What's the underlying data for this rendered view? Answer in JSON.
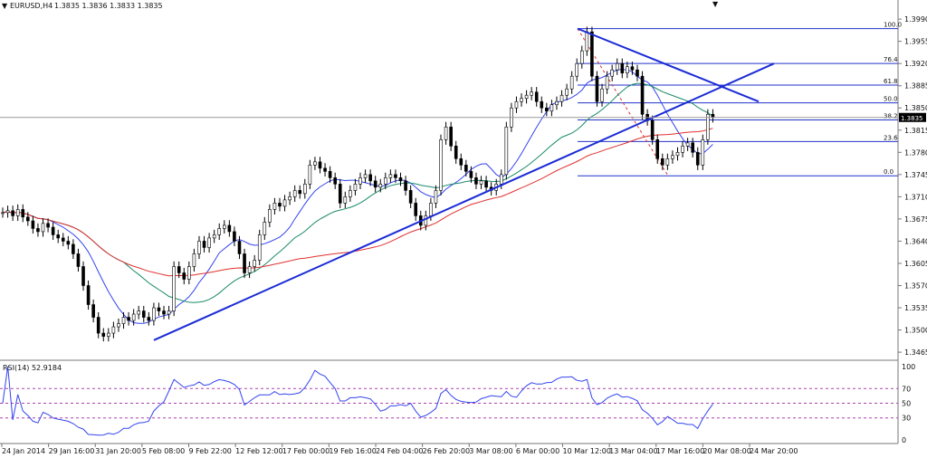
{
  "window": {
    "symbol_label": "EURUSD,H4",
    "ohlc_label": "1.3835 1.3836 1.3833 1.3835",
    "current_price_label": "1.3835"
  },
  "rsi_panel": {
    "label": "RSI(14) 52.9184",
    "levels": [
      70,
      50,
      30
    ],
    "ticks": [
      "100",
      "70",
      "50",
      "30",
      "0"
    ]
  },
  "chart_data": {
    "type": "candlestick",
    "instrument": "EURUSD",
    "timeframe": "H4",
    "y_ticks": [
      1.399,
      1.3955,
      1.392,
      1.3885,
      1.385,
      1.3815,
      1.378,
      1.3745,
      1.371,
      1.3675,
      1.364,
      1.3605,
      1.357,
      1.3535,
      1.35,
      1.3465
    ],
    "y_tick_labels": [
      "1.3990",
      "1.3955",
      "1.3920",
      "1.3885",
      "1.3850",
      "1.3815",
      "1.3780",
      "1.3745",
      "1.3710",
      "1.3675",
      "1.3640",
      "1.3605",
      "1.3570",
      "1.3535",
      "1.3500",
      "1.3465"
    ],
    "ylim": [
      1.3458,
      1.4003
    ],
    "x_tick_labels": [
      "24 Jan 2014",
      "29 Jan 16:00",
      "31 Jan 20:00",
      "5 Feb 08:00",
      "9 Feb 22:00",
      "12 Feb 12:00",
      "17 Feb 00:00",
      "19 Feb 16:00",
      "24 Feb 04:00",
      "26 Feb 20:00",
      "3 Mar 08:00",
      "6 Mar 00:00",
      "10 Mar 12:00",
      "13 Mar 04:00",
      "17 Mar 16:00",
      "20 Mar 08:00",
      "24 Mar 20:00"
    ],
    "fibonacci": {
      "levels": [
        {
          "label": "100.0",
          "price": 1.3975
        },
        {
          "label": "76.4",
          "price": 1.392
        },
        {
          "label": "61.8",
          "price": 1.3886
        },
        {
          "label": "50.0",
          "price": 1.3858
        },
        {
          "label": "38.2",
          "price": 1.3831
        },
        {
          "label": "23.6",
          "price": 1.3797
        },
        {
          "label": "0.0",
          "price": 1.3743
        }
      ]
    },
    "candles_close": [
      1.3685,
      1.3688,
      1.368,
      1.369,
      1.3678,
      1.3672,
      1.366,
      1.3655,
      1.3668,
      1.3662,
      1.365,
      1.3645,
      1.364,
      1.3635,
      1.362,
      1.36,
      1.357,
      1.354,
      1.352,
      1.3495,
      1.349,
      1.3495,
      1.3505,
      1.351,
      1.352,
      1.3515,
      1.3525,
      1.353,
      1.352,
      1.3515,
      1.3535,
      1.353,
      1.3525,
      1.353,
      1.36,
      1.359,
      1.358,
      1.36,
      1.362,
      1.364,
      1.363,
      1.3645,
      1.365,
      1.366,
      1.3665,
      1.3655,
      1.364,
      1.362,
      1.359,
      1.36,
      1.361,
      1.365,
      1.367,
      1.369,
      1.37,
      1.3695,
      1.3705,
      1.371,
      1.372,
      1.3715,
      1.373,
      1.376,
      1.3765,
      1.3755,
      1.375,
      1.374,
      1.373,
      1.37,
      1.371,
      1.372,
      1.373,
      1.374,
      1.3745,
      1.3735,
      1.3725,
      1.373,
      1.374,
      1.3745,
      1.374,
      1.3735,
      1.372,
      1.37,
      1.368,
      1.3665,
      1.368,
      1.37,
      1.372,
      1.38,
      1.382,
      1.379,
      1.377,
      1.376,
      1.375,
      1.374,
      1.373,
      1.3735,
      1.3725,
      1.372,
      1.373,
      1.3745,
      1.382,
      1.385,
      1.386,
      1.3865,
      1.387,
      1.3875,
      1.386,
      1.385,
      1.3845,
      1.3855,
      1.386,
      1.387,
      1.388,
      1.39,
      1.392,
      1.394,
      1.397,
      1.39,
      1.386,
      1.388,
      1.39,
      1.391,
      1.392,
      1.3905,
      1.3915,
      1.391,
      1.39,
      1.384,
      1.383,
      1.38,
      1.377,
      1.376,
      1.377,
      1.3775,
      1.378,
      1.379,
      1.3795,
      1.378,
      1.376,
      1.38,
      1.384,
      1.3835
    ]
  }
}
